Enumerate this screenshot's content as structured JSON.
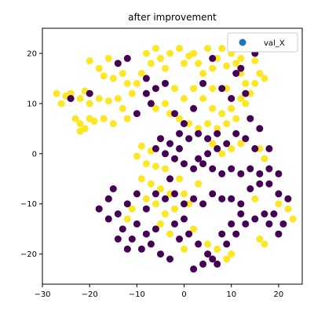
{
  "chart_data": {
    "type": "scatter",
    "title": "after improvement",
    "xlabel": "",
    "ylabel": "",
    "xlim": [
      -30,
      25
    ],
    "ylim": [
      -26,
      25
    ],
    "xticks": [
      -30,
      -20,
      -10,
      0,
      10,
      20
    ],
    "yticks": [
      -20,
      -10,
      0,
      10,
      20
    ],
    "grid": false,
    "legend": {
      "placement": "top-right",
      "entries": [
        {
          "label": "val_X",
          "color": "#1f77b4"
        }
      ]
    },
    "class_colors": {
      "0": "#440154",
      "1": "#fde725"
    },
    "series": [
      {
        "class": 1,
        "color": "#fde725",
        "points": [
          [
            -27,
            12
          ],
          [
            -25,
            11.5
          ],
          [
            -26,
            10
          ],
          [
            -24,
            12
          ],
          [
            -22,
            11
          ],
          [
            -20,
            10
          ],
          [
            -21,
            12.5
          ],
          [
            -18,
            11
          ],
          [
            -16,
            10.5
          ],
          [
            -14,
            11
          ],
          [
            -23,
            7
          ],
          [
            -22,
            6
          ],
          [
            -21,
            5
          ],
          [
            -20,
            7
          ],
          [
            -22,
            4.5
          ],
          [
            -19,
            6.5
          ],
          [
            -17,
            7
          ],
          [
            -15,
            6
          ],
          [
            -13,
            9
          ],
          [
            -12,
            7
          ],
          [
            -20,
            18.5
          ],
          [
            -18,
            17
          ],
          [
            -16,
            19
          ],
          [
            -14,
            18
          ],
          [
            -13,
            16
          ],
          [
            -15,
            15
          ],
          [
            -17,
            15.5
          ],
          [
            -12,
            14
          ],
          [
            -11,
            12
          ],
          [
            -10,
            14
          ],
          [
            -9,
            16
          ],
          [
            -7,
            18
          ],
          [
            -8,
            20
          ],
          [
            -6,
            21
          ],
          [
            -5,
            19
          ],
          [
            -4,
            17
          ],
          [
            -3,
            20
          ],
          [
            -1,
            21
          ],
          [
            0,
            18
          ],
          [
            1,
            19.5
          ],
          [
            2,
            20
          ],
          [
            3,
            18
          ],
          [
            4,
            16
          ],
          [
            6,
            17
          ],
          [
            7,
            19
          ],
          [
            5,
            21
          ],
          [
            8,
            21
          ],
          [
            9,
            17.5
          ],
          [
            10,
            20
          ],
          [
            11,
            18
          ],
          [
            12,
            16
          ],
          [
            13,
            14
          ],
          [
            12,
            19
          ],
          [
            14,
            21
          ],
          [
            15,
            18.5
          ],
          [
            16,
            16
          ],
          [
            14,
            12
          ],
          [
            12,
            11
          ],
          [
            10,
            9
          ],
          [
            8,
            8
          ],
          [
            6,
            9
          ],
          [
            4,
            11
          ],
          [
            2,
            13
          ],
          [
            0,
            11
          ],
          [
            -2,
            13
          ],
          [
            -4,
            10
          ],
          [
            -6,
            9
          ],
          [
            -3,
            8
          ],
          [
            -1,
            7
          ],
          [
            1,
            6
          ],
          [
            3,
            5
          ],
          [
            5,
            6
          ],
          [
            7,
            5
          ],
          [
            9,
            6
          ],
          [
            11,
            7
          ],
          [
            13,
            10
          ],
          [
            15,
            14
          ],
          [
            17,
            15
          ],
          [
            6,
            13
          ],
          [
            9,
            13
          ],
          [
            -9,
            1.5
          ],
          [
            -10,
            -0.5
          ],
          [
            -8,
            -2
          ],
          [
            -6,
            -2.5
          ],
          [
            -4,
            -3
          ],
          [
            -7,
            0.5
          ],
          [
            -9,
            -5
          ],
          [
            -7,
            -6
          ],
          [
            -5,
            -7
          ],
          [
            -3,
            -8
          ],
          [
            -8,
            -9
          ],
          [
            -6,
            -10
          ],
          [
            -11,
            -11
          ],
          [
            -12,
            -13
          ],
          [
            -4,
            -12
          ],
          [
            -2,
            -11
          ],
          [
            0,
            -8
          ],
          [
            1,
            -10
          ],
          [
            3,
            -6
          ],
          [
            -1,
            -5
          ],
          [
            6,
            2
          ],
          [
            8,
            0
          ],
          [
            10,
            1
          ],
          [
            12,
            2
          ],
          [
            16,
            1
          ],
          [
            17,
            -1
          ],
          [
            2,
            -15
          ],
          [
            -3,
            -16
          ],
          [
            0,
            -19
          ],
          [
            5,
            -18
          ],
          [
            7,
            -19
          ],
          [
            9,
            -21
          ],
          [
            10,
            -20
          ],
          [
            16,
            -17
          ],
          [
            17,
            -18
          ],
          [
            20,
            -10
          ],
          [
            22,
            -11
          ],
          [
            23,
            -13
          ],
          [
            15,
            -9
          ],
          [
            -5,
            -14
          ]
        ]
      },
      {
        "class": 0,
        "color": "#440154",
        "points": [
          [
            -24,
            11
          ],
          [
            -20,
            12
          ],
          [
            -14,
            18
          ],
          [
            -12,
            19
          ],
          [
            -8,
            15
          ],
          [
            -6,
            13
          ],
          [
            -4,
            14
          ],
          [
            -2,
            8
          ],
          [
            0,
            6
          ],
          [
            2,
            9
          ],
          [
            4,
            14
          ],
          [
            6,
            19
          ],
          [
            8,
            13
          ],
          [
            10,
            11
          ],
          [
            11,
            16
          ],
          [
            12,
            17
          ],
          [
            15,
            20
          ],
          [
            13,
            12
          ],
          [
            14,
            7
          ],
          [
            16,
            5
          ],
          [
            -10,
            8
          ],
          [
            -8,
            12
          ],
          [
            -7,
            10
          ],
          [
            -5,
            3
          ],
          [
            -3,
            2
          ],
          [
            -1,
            4
          ],
          [
            1,
            3
          ],
          [
            3,
            4
          ],
          [
            5,
            3
          ],
          [
            7,
            4
          ],
          [
            9,
            2
          ],
          [
            11,
            4
          ],
          [
            13,
            3
          ],
          [
            15,
            1
          ],
          [
            18,
            1
          ],
          [
            -6,
            1
          ],
          [
            -4,
            0
          ],
          [
            -2,
            -1
          ],
          [
            0,
            -2
          ],
          [
            2,
            -3
          ],
          [
            4,
            -2
          ],
          [
            6,
            -3
          ],
          [
            8,
            -4
          ],
          [
            10,
            -3
          ],
          [
            12,
            -4
          ],
          [
            14,
            -3
          ],
          [
            16,
            -4
          ],
          [
            18,
            -3
          ],
          [
            20,
            -4
          ],
          [
            -15,
            -7
          ],
          [
            -16,
            -9
          ],
          [
            -18,
            -11
          ],
          [
            -16,
            -13
          ],
          [
            -14,
            -12
          ],
          [
            -12,
            -10
          ],
          [
            -10,
            -8
          ],
          [
            -8,
            -11
          ],
          [
            -6,
            -8
          ],
          [
            -4,
            -9
          ],
          [
            -2,
            -8
          ],
          [
            0,
            -10
          ],
          [
            2,
            -9
          ],
          [
            4,
            -10
          ],
          [
            6,
            -8
          ],
          [
            8,
            -9
          ],
          [
            10,
            -9
          ],
          [
            12,
            -10
          ],
          [
            14,
            -7
          ],
          [
            16,
            -6
          ],
          [
            18,
            -6
          ],
          [
            20,
            -8
          ],
          [
            22,
            -9
          ],
          [
            19,
            -12
          ],
          [
            21,
            -14
          ],
          [
            20,
            -16
          ],
          [
            18,
            -14
          ],
          [
            17,
            -12
          ],
          [
            -13,
            -15
          ],
          [
            -11,
            -17
          ],
          [
            -9,
            -19
          ],
          [
            -7,
            -18
          ],
          [
            -5,
            -20
          ],
          [
            -3,
            -21
          ],
          [
            -1,
            -17
          ],
          [
            1,
            -16
          ],
          [
            3,
            -18
          ],
          [
            5,
            -20
          ],
          [
            7,
            -22
          ],
          [
            9,
            -18
          ],
          [
            11,
            -16
          ],
          [
            13,
            -14
          ],
          [
            15,
            -13
          ],
          [
            -10,
            -14
          ],
          [
            -8,
            -16
          ],
          [
            -6,
            -15
          ],
          [
            2,
            -23
          ],
          [
            4,
            -22
          ],
          [
            6,
            -21
          ],
          [
            8,
            -16
          ],
          [
            10,
            -14
          ],
          [
            12,
            -12
          ],
          [
            -2,
            -14
          ],
          [
            0,
            -13
          ],
          [
            -14,
            -17
          ],
          [
            -12,
            -19
          ],
          [
            3,
            -1
          ],
          [
            5,
            0
          ],
          [
            7,
            1
          ],
          [
            -1,
            1
          ],
          [
            -3,
            -5
          ]
        ]
      }
    ]
  }
}
